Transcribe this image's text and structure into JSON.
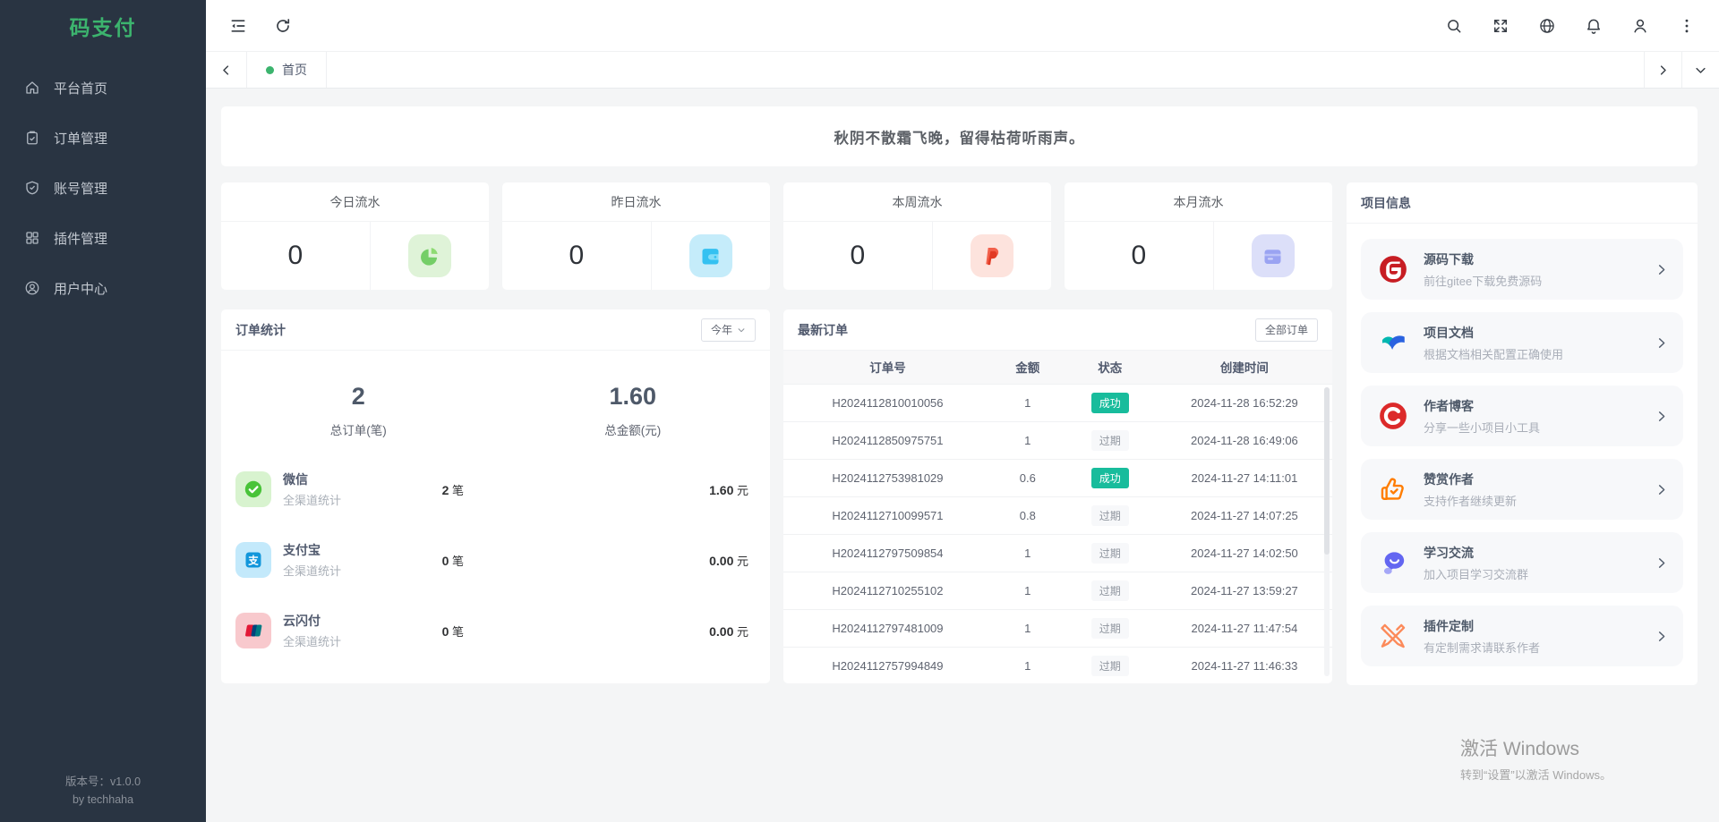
{
  "app": {
    "name": "码支付",
    "accent_color": "#3cb46e",
    "version": "版本号：v1.0.0",
    "author": "by techhaha"
  },
  "sidebar": {
    "items": [
      {
        "label": "平台首页",
        "icon": "home"
      },
      {
        "label": "订单管理",
        "icon": "order"
      },
      {
        "label": "账号管理",
        "icon": "shield-check"
      },
      {
        "label": "插件管理",
        "icon": "plugin-grid"
      },
      {
        "label": "用户中心",
        "icon": "user-center"
      }
    ]
  },
  "topbar": {
    "left_icons": [
      {
        "name": "collapse-menu"
      },
      {
        "name": "refresh"
      }
    ],
    "right_icons": [
      {
        "name": "search"
      },
      {
        "name": "fullscreen"
      },
      {
        "name": "globe"
      },
      {
        "name": "bell",
        "badge": true
      },
      {
        "name": "user"
      },
      {
        "name": "more-vertical"
      }
    ],
    "notification_dot_color": "#f9562a"
  },
  "tabs": {
    "active_tab": "首页"
  },
  "quote": {
    "text": "秋阴不散霜飞晚，留得枯荷听雨声。"
  },
  "stat_cards": [
    {
      "title": "今日流水",
      "value": "0",
      "icon": "pie-chart",
      "icon_bg": "#dff3d8"
    },
    {
      "title": "昨日流水",
      "value": "0",
      "icon": "wallet-blue",
      "icon_bg": "#c5ecfa"
    },
    {
      "title": "本周流水",
      "value": "0",
      "icon": "paypal",
      "icon_bg": "#fde3dd"
    },
    {
      "title": "本月流水",
      "value": "0",
      "icon": "wallet-purple",
      "icon_bg": "#dcdff9"
    }
  ],
  "order_stats": {
    "title": "订单统计",
    "range_label": "今年",
    "totals": [
      {
        "value": "2",
        "label": "总订单(笔)"
      },
      {
        "value": "1.60",
        "label": "总金额(元)"
      }
    ],
    "channels": [
      {
        "name": "微信",
        "desc": "全渠道统计",
        "icon": "wechat",
        "icon_bg": "#d8f3cf",
        "count": "2",
        "count_unit": "笔",
        "amount": "1.60",
        "amount_unit": "元"
      },
      {
        "name": "支付宝",
        "desc": "全渠道统计",
        "icon": "alipay",
        "icon_bg": "#c3e9fb",
        "count": "0",
        "count_unit": "笔",
        "amount": "0.00",
        "amount_unit": "元"
      },
      {
        "name": "云闪付",
        "desc": "全渠道统计",
        "icon": "unionpay",
        "icon_bg": "#f8c9cd",
        "count": "0",
        "count_unit": "笔",
        "amount": "0.00",
        "amount_unit": "元"
      }
    ]
  },
  "latest_orders": {
    "title": "最新订单",
    "view_all_label": "全部订单",
    "columns": [
      "订单号",
      "金额",
      "状态",
      "创建时间"
    ],
    "status_colors": {
      "success_bg": "#18bc9c",
      "success_text": "#ffffff",
      "expired_text": "#8f959e"
    },
    "rows": [
      {
        "order_no": "H2024112810010056",
        "amount": "1",
        "status": "成功",
        "status_type": "success",
        "created_at": "2024-11-28 16:52:29"
      },
      {
        "order_no": "H2024112850975751",
        "amount": "1",
        "status": "过期",
        "status_type": "expired",
        "created_at": "2024-11-28 16:49:06"
      },
      {
        "order_no": "H2024112753981029",
        "amount": "0.6",
        "status": "成功",
        "status_type": "success",
        "created_at": "2024-11-27 14:11:01"
      },
      {
        "order_no": "H2024112710099571",
        "amount": "0.8",
        "status": "过期",
        "status_type": "expired",
        "created_at": "2024-11-27 14:07:25"
      },
      {
        "order_no": "H2024112797509854",
        "amount": "1",
        "status": "过期",
        "status_type": "expired",
        "created_at": "2024-11-27 14:02:50"
      },
      {
        "order_no": "H2024112710255102",
        "amount": "1",
        "status": "过期",
        "status_type": "expired",
        "created_at": "2024-11-27 13:59:27"
      },
      {
        "order_no": "H2024112797481009",
        "amount": "1",
        "status": "过期",
        "status_type": "expired",
        "created_at": "2024-11-27 11:47:54"
      },
      {
        "order_no": "H2024112757994849",
        "amount": "1",
        "status": "过期",
        "status_type": "expired",
        "created_at": "2024-11-27 11:46:33"
      }
    ]
  },
  "project_info": {
    "title": "项目信息",
    "items": [
      {
        "title": "源码下载",
        "desc": "前往gitee下载免费源码",
        "icon": "gitee"
      },
      {
        "title": "项目文档",
        "desc": "根据文档相关配置正确使用",
        "icon": "docs"
      },
      {
        "title": "作者博客",
        "desc": "分享一些小项目小工具",
        "icon": "csdn"
      },
      {
        "title": "赞赏作者",
        "desc": "支持作者继续更新",
        "icon": "reward"
      },
      {
        "title": "学习交流",
        "desc": "加入项目学习交流群",
        "icon": "chat"
      },
      {
        "title": "插件定制",
        "desc": "有定制需求请联系作者",
        "icon": "custom-tools"
      }
    ]
  },
  "watermark": {
    "line1": "激活 Windows",
    "line2": "转到“设置”以激活 Windows。"
  }
}
